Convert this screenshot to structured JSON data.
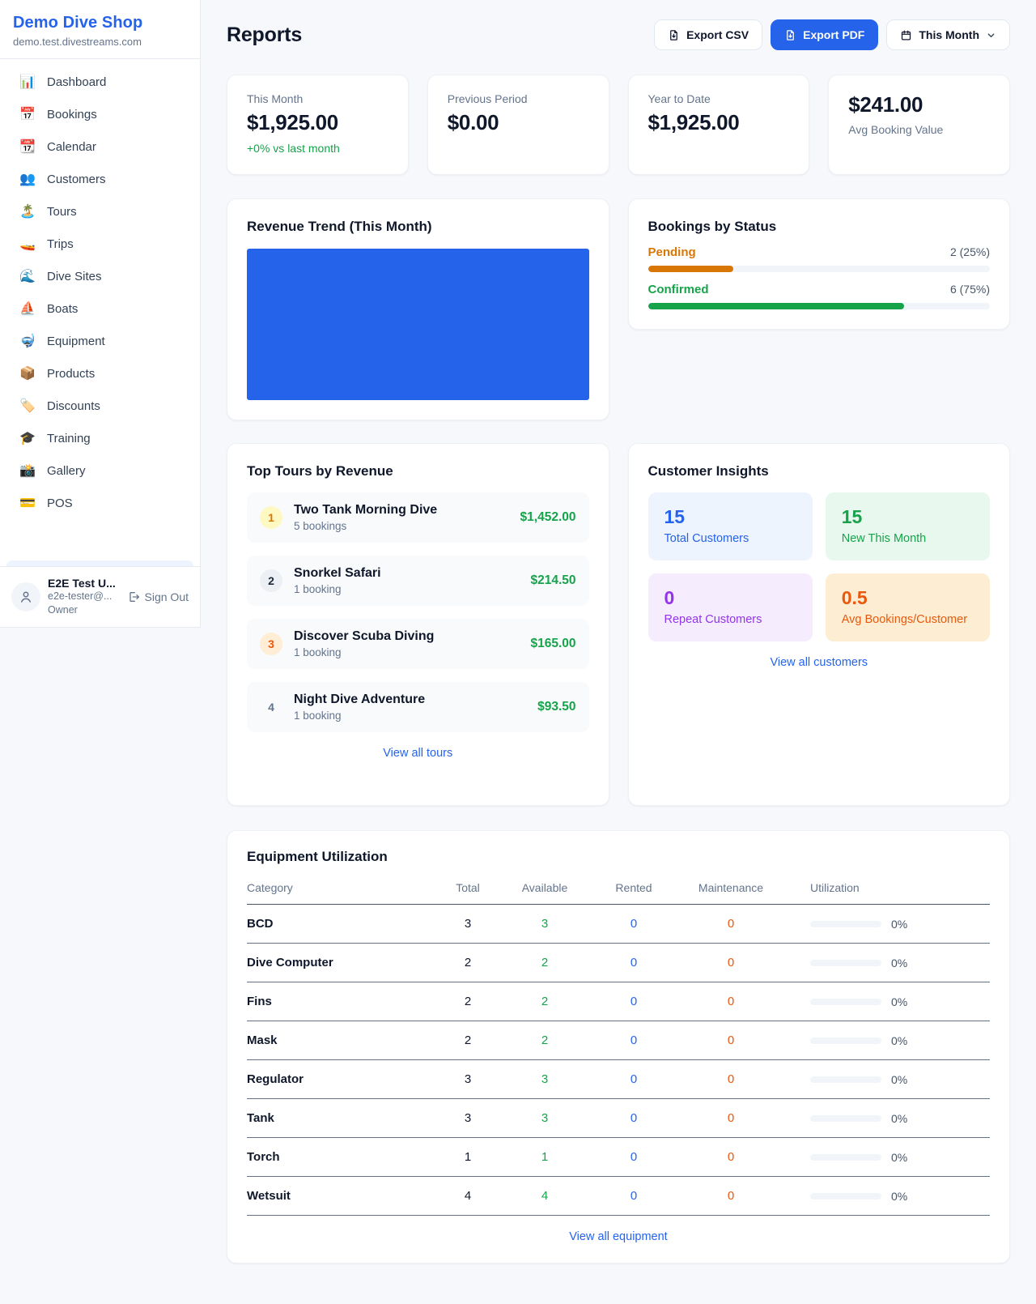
{
  "colors": {
    "accent_blue": "#2563eb",
    "green": "#16a34a",
    "amber": "#d97706",
    "orange": "#ea580c",
    "purple": "#9333ea"
  },
  "sidebar": {
    "shop_name": "Demo Dive Shop",
    "domain": "demo.test.divestreams.com",
    "nav": [
      {
        "icon": "📊",
        "label": "Dashboard"
      },
      {
        "icon": "📅",
        "label": "Bookings"
      },
      {
        "icon": "📆",
        "label": "Calendar"
      },
      {
        "icon": "👥",
        "label": "Customers"
      },
      {
        "icon": "🏝️",
        "label": "Tours"
      },
      {
        "icon": "🚤",
        "label": "Trips"
      },
      {
        "icon": "🌊",
        "label": "Dive Sites"
      },
      {
        "icon": "⛵",
        "label": "Boats"
      },
      {
        "icon": "🤿",
        "label": "Equipment"
      },
      {
        "icon": "📦",
        "label": "Products"
      },
      {
        "icon": "🏷️",
        "label": "Discounts"
      },
      {
        "icon": "🎓",
        "label": "Training"
      },
      {
        "icon": "📸",
        "label": "Gallery"
      },
      {
        "icon": "💳",
        "label": "POS"
      }
    ],
    "user": {
      "name": "E2E Test U...",
      "email": "e2e-tester@...",
      "role": "Owner",
      "sign_out_label": "Sign Out"
    }
  },
  "header": {
    "title": "Reports",
    "export_csv_label": "Export CSV",
    "export_pdf_label": "Export PDF",
    "period_label": "This Month"
  },
  "stats": [
    {
      "label": "This Month",
      "value": "$1,925.00",
      "delta": "+0% vs last month",
      "value_first": false
    },
    {
      "label": "Previous Period",
      "value": "$0.00",
      "delta": "",
      "value_first": false
    },
    {
      "label": "Year to Date",
      "value": "$1,925.00",
      "delta": "",
      "value_first": false
    },
    {
      "label": "Avg Booking Value",
      "value": "$241.00",
      "delta": "",
      "value_first": true
    }
  ],
  "revenue_trend": {
    "title": "Revenue Trend (This Month)"
  },
  "bookings_by_status": {
    "title": "Bookings by Status",
    "rows": [
      {
        "label": "Pending",
        "count_text": "2 (25%)",
        "pct": 25,
        "color": "#d97706"
      },
      {
        "label": "Confirmed",
        "count_text": "6 (75%)",
        "pct": 75,
        "color": "#16a34a"
      }
    ]
  },
  "top_tours": {
    "title": "Top Tours by Revenue",
    "view_all_label": "View all tours",
    "items": [
      {
        "rank": "1",
        "name": "Two Tank Morning Dive",
        "bookings": "5 bookings",
        "revenue": "$1,452.00",
        "badge_bg": "#fef9c3",
        "badge_color": "#d97706"
      },
      {
        "rank": "2",
        "name": "Snorkel Safari",
        "bookings": "1 booking",
        "revenue": "$214.50",
        "badge_bg": "#eceff3",
        "badge_color": "#1e293b"
      },
      {
        "rank": "3",
        "name": "Discover Scuba Diving",
        "bookings": "1 booking",
        "revenue": "$165.00",
        "badge_bg": "#ffedd5",
        "badge_color": "#ea580c"
      },
      {
        "rank": "4",
        "name": "Night Dive Adventure",
        "bookings": "1 booking",
        "revenue": "$93.50",
        "badge_bg": "transparent",
        "badge_color": "#64748b"
      }
    ]
  },
  "customer_insights": {
    "title": "Customer Insights",
    "view_all_label": "View all customers",
    "tiles": [
      {
        "value": "15",
        "label": "Total Customers",
        "bg": "#edf4fe",
        "color": "#2563eb"
      },
      {
        "value": "15",
        "label": "New This Month",
        "bg": "#e9f8ef",
        "color": "#16a34a"
      },
      {
        "value": "0",
        "label": "Repeat Customers",
        "bg": "#f5ecfe",
        "color": "#9333ea"
      },
      {
        "value": "0.5",
        "label": "Avg Bookings/Customer",
        "bg": "#fdeed3",
        "color": "#ea580c"
      }
    ]
  },
  "equipment": {
    "title": "Equipment Utilization",
    "view_all_label": "View all equipment",
    "columns": [
      "Category",
      "Total",
      "Available",
      "Rented",
      "Maintenance",
      "Utilization"
    ],
    "rows": [
      {
        "category": "BCD",
        "total": "3",
        "available": "3",
        "rented": "0",
        "maintenance": "0",
        "utilization": "0%"
      },
      {
        "category": "Dive Computer",
        "total": "2",
        "available": "2",
        "rented": "0",
        "maintenance": "0",
        "utilization": "0%"
      },
      {
        "category": "Fins",
        "total": "2",
        "available": "2",
        "rented": "0",
        "maintenance": "0",
        "utilization": "0%"
      },
      {
        "category": "Mask",
        "total": "2",
        "available": "2",
        "rented": "0",
        "maintenance": "0",
        "utilization": "0%"
      },
      {
        "category": "Regulator",
        "total": "3",
        "available": "3",
        "rented": "0",
        "maintenance": "0",
        "utilization": "0%"
      },
      {
        "category": "Tank",
        "total": "3",
        "available": "3",
        "rented": "0",
        "maintenance": "0",
        "utilization": "0%"
      },
      {
        "category": "Torch",
        "total": "1",
        "available": "1",
        "rented": "0",
        "maintenance": "0",
        "utilization": "0%"
      },
      {
        "category": "Wetsuit",
        "total": "4",
        "available": "4",
        "rented": "0",
        "maintenance": "0",
        "utilization": "0%"
      }
    ]
  }
}
